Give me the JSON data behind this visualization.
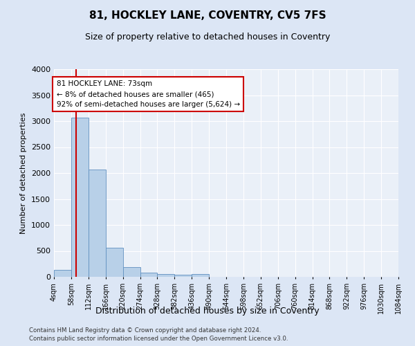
{
  "title": "81, HOCKLEY LANE, COVENTRY, CV5 7FS",
  "subtitle": "Size of property relative to detached houses in Coventry",
  "xlabel": "Distribution of detached houses by size in Coventry",
  "ylabel": "Number of detached properties",
  "bin_edges": [
    4,
    58,
    112,
    166,
    220,
    274,
    328,
    382,
    436,
    490,
    544,
    598,
    652,
    706,
    760,
    814,
    868,
    922,
    976,
    1030,
    1084
  ],
  "bar_heights": [
    130,
    3070,
    2070,
    560,
    190,
    85,
    55,
    45,
    55,
    0,
    0,
    0,
    0,
    0,
    0,
    0,
    0,
    0,
    0,
    0
  ],
  "bar_color": "#b8d0e8",
  "bar_edge_color": "#6090c0",
  "property_size": 73,
  "vline_color": "#cc0000",
  "annotation_text": "81 HOCKLEY LANE: 73sqm\n← 8% of detached houses are smaller (465)\n92% of semi-detached houses are larger (5,624) →",
  "annotation_box_color": "#ffffff",
  "annotation_box_edge": "#cc0000",
  "ylim": [
    0,
    4000
  ],
  "yticks": [
    0,
    500,
    1000,
    1500,
    2000,
    2500,
    3000,
    3500,
    4000
  ],
  "footer_line1": "Contains HM Land Registry data © Crown copyright and database right 2024.",
  "footer_line2": "Contains public sector information licensed under the Open Government Licence v3.0.",
  "bg_color": "#dce6f5",
  "plot_bg_color": "#eaf0f8"
}
